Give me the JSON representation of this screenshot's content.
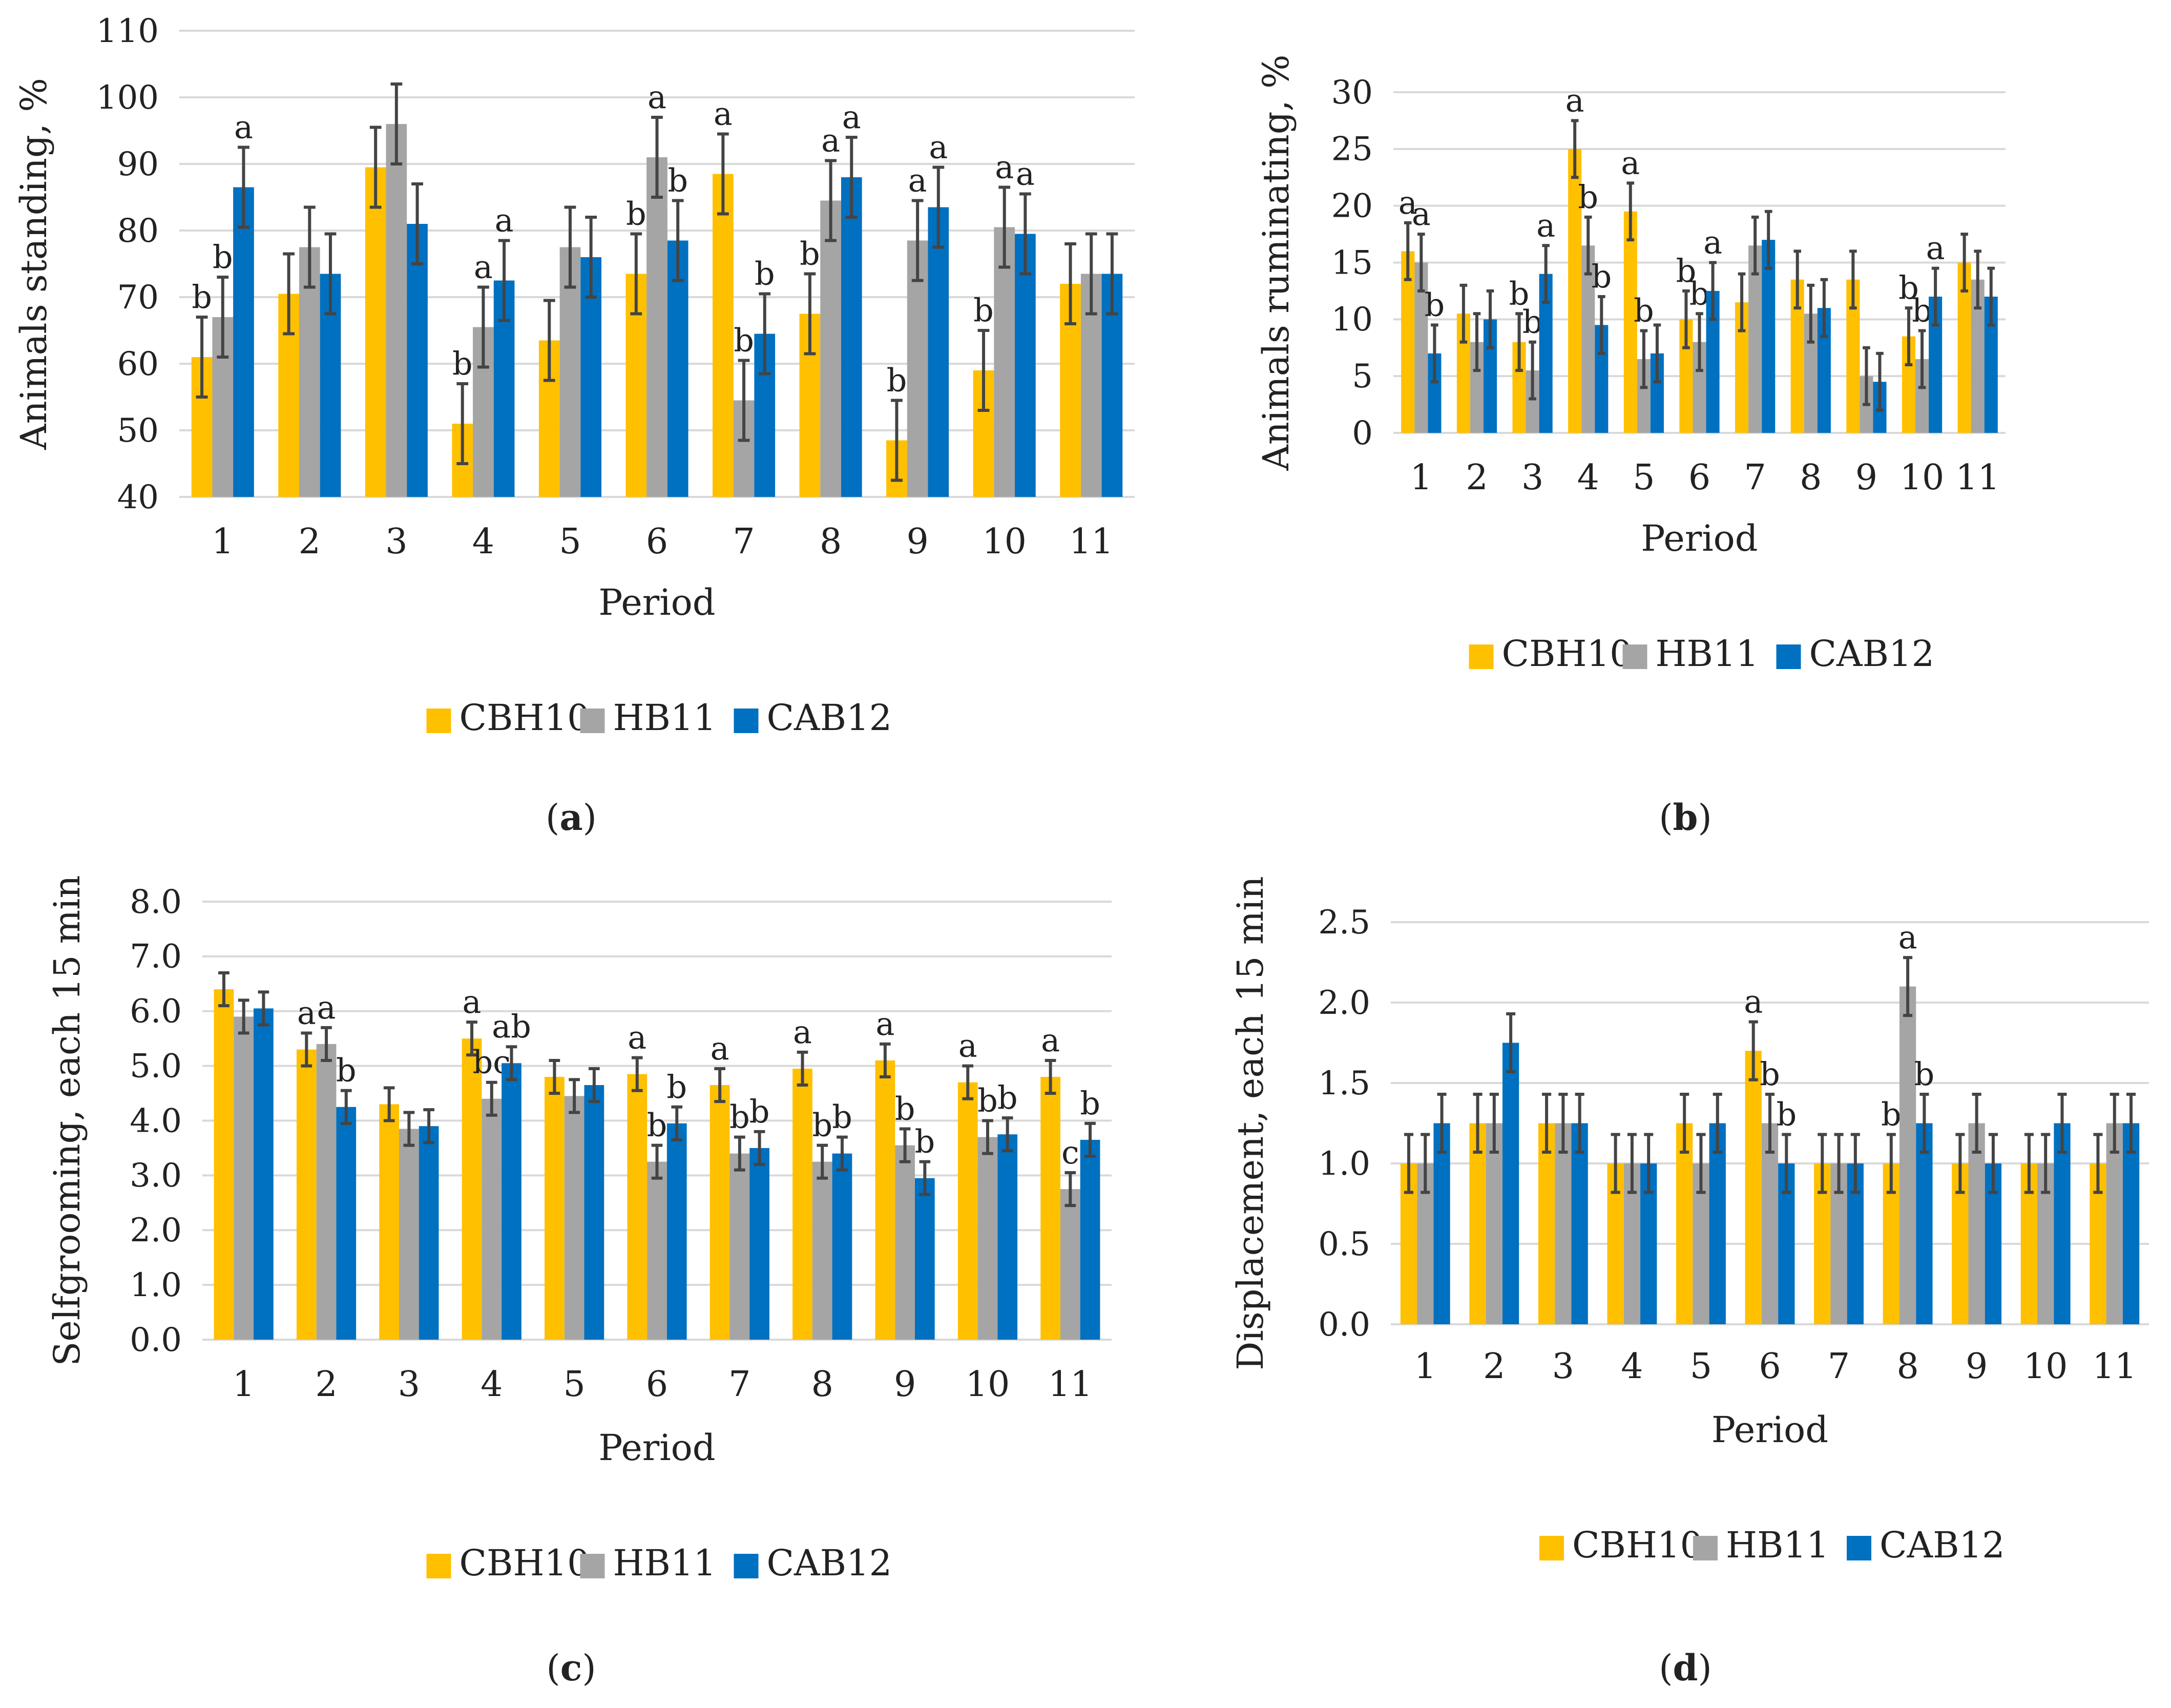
{
  "figure": {
    "colors": {
      "CBH10": "#FFC000",
      "HB11": "#A5A5A5",
      "CAB12": "#0070C0",
      "grid": "#D9D9D9",
      "error": "#444444"
    },
    "panels": [
      {
        "id": "a",
        "caption": "a",
        "legend": [
          "CBH10",
          "HB11",
          "CAB12"
        ]
      },
      {
        "id": "b",
        "caption": "b",
        "legend": [
          "CBH10",
          "HB11",
          "CAB12"
        ]
      },
      {
        "id": "c",
        "caption": "c",
        "legend": [
          "CBH10",
          "HB11",
          "CAB12"
        ]
      },
      {
        "id": "d",
        "caption": "d",
        "legend": [
          "CBH10",
          "HB11",
          "CAB12"
        ]
      }
    ]
  },
  "chart_data": [
    {
      "id": "a",
      "type": "bar",
      "title": "",
      "xlabel": "Period",
      "ylabel": "Animals standing, %",
      "ylim": [
        40,
        110
      ],
      "yticks": [
        "40",
        "50",
        "60",
        "70",
        "80",
        "90",
        "100",
        "110"
      ],
      "grid": true,
      "legend_position": "bottom",
      "categories": [
        "1",
        "2",
        "3",
        "4",
        "5",
        "6",
        "7",
        "8",
        "9",
        "10",
        "11"
      ],
      "series": [
        {
          "name": "CBH10",
          "values": [
            61,
            70.5,
            89.5,
            51,
            63.5,
            73.5,
            88.5,
            67.5,
            48.5,
            59,
            72
          ],
          "errors": [
            6,
            6,
            6,
            6,
            6,
            6,
            6,
            6,
            6,
            6,
            6
          ],
          "letters": [
            "b",
            "",
            "",
            "b",
            "",
            "b",
            "a",
            "b",
            "b",
            "b",
            ""
          ]
        },
        {
          "name": "HB11",
          "values": [
            67,
            77.5,
            96,
            65.5,
            77.5,
            91,
            54.5,
            84.5,
            78.5,
            80.5,
            73.5
          ],
          "errors": [
            6,
            6,
            6,
            6,
            6,
            6,
            6,
            6,
            6,
            6,
            6
          ],
          "letters": [
            "b",
            "",
            "",
            "a",
            "",
            "a",
            "b",
            "a",
            "a",
            "a",
            ""
          ]
        },
        {
          "name": "CAB12",
          "values": [
            86.5,
            73.5,
            81,
            72.5,
            76,
            78.5,
            64.5,
            88,
            83.5,
            79.5,
            73.5
          ],
          "errors": [
            6,
            6,
            6,
            6,
            6,
            6,
            6,
            6,
            6,
            6,
            6
          ],
          "letters": [
            "a",
            "",
            "",
            "a",
            "",
            "b",
            "b",
            "a",
            "a",
            "a",
            ""
          ]
        }
      ]
    },
    {
      "id": "b",
      "type": "bar",
      "title": "",
      "xlabel": "Period",
      "ylabel": "Animals ruminating, %",
      "ylim": [
        0,
        30
      ],
      "yticks": [
        "0",
        "5",
        "10",
        "15",
        "20",
        "25",
        "30"
      ],
      "grid": true,
      "legend_position": "bottom",
      "categories": [
        "1",
        "2",
        "3",
        "4",
        "5",
        "6",
        "7",
        "8",
        "9",
        "10",
        "11"
      ],
      "series": [
        {
          "name": "CBH10",
          "values": [
            16,
            10.5,
            8,
            25,
            19.5,
            10,
            11.5,
            13.5,
            13.5,
            8.5,
            15
          ],
          "errors": [
            2.5,
            2.5,
            2.5,
            2.5,
            2.5,
            2.5,
            2.5,
            2.5,
            2.5,
            2.5,
            2.5
          ],
          "letters": [
            "a",
            "",
            "b",
            "a",
            "a",
            "b",
            "",
            "",
            "",
            "b",
            ""
          ]
        },
        {
          "name": "HB11",
          "values": [
            15,
            8,
            5.5,
            16.5,
            6.5,
            8,
            16.5,
            10.5,
            5,
            6.5,
            13.5
          ],
          "errors": [
            2.5,
            2.5,
            2.5,
            2.5,
            2.5,
            2.5,
            2.5,
            2.5,
            2.5,
            2.5,
            2.5
          ],
          "letters": [
            "a",
            "",
            "b",
            "b",
            "b",
            "b",
            "",
            "",
            "",
            "b",
            ""
          ]
        },
        {
          "name": "CAB12",
          "values": [
            7,
            10,
            14,
            9.5,
            7,
            12.5,
            17,
            11,
            4.5,
            12,
            12
          ],
          "errors": [
            2.5,
            2.5,
            2.5,
            2.5,
            2.5,
            2.5,
            2.5,
            2.5,
            2.5,
            2.5,
            2.5
          ],
          "letters": [
            "b",
            "",
            "a",
            "b",
            "",
            "a",
            "",
            "",
            "",
            "a",
            ""
          ]
        }
      ]
    },
    {
      "id": "c",
      "type": "bar",
      "title": "",
      "xlabel": "Period",
      "ylabel": "Selfgrooming, each 15 min",
      "ylim": [
        0,
        8
      ],
      "yticks": [
        "0.0",
        "1.0",
        "2.0",
        "3.0",
        "4.0",
        "5.0",
        "6.0",
        "7.0",
        "8.0"
      ],
      "grid": true,
      "legend_position": "bottom",
      "categories": [
        "1",
        "2",
        "3",
        "4",
        "5",
        "6",
        "7",
        "8",
        "9",
        "10",
        "11"
      ],
      "series": [
        {
          "name": "CBH10",
          "values": [
            6.4,
            5.3,
            4.3,
            5.5,
            4.8,
            4.85,
            4.65,
            4.95,
            5.1,
            4.7,
            4.8
          ],
          "errors": [
            0.3,
            0.3,
            0.3,
            0.3,
            0.3,
            0.3,
            0.3,
            0.3,
            0.3,
            0.3,
            0.3
          ],
          "letters": [
            "",
            "a",
            "",
            "a",
            "",
            "a",
            "a",
            "a",
            "a",
            "a",
            "a"
          ]
        },
        {
          "name": "HB11",
          "values": [
            5.9,
            5.4,
            3.85,
            4.4,
            4.45,
            3.25,
            3.4,
            3.25,
            3.55,
            3.7,
            2.75
          ],
          "errors": [
            0.3,
            0.3,
            0.3,
            0.3,
            0.3,
            0.3,
            0.3,
            0.3,
            0.3,
            0.3,
            0.3
          ],
          "letters": [
            "",
            "a",
            "",
            "bc",
            "",
            "b",
            "b",
            "b",
            "b",
            "b",
            "c"
          ]
        },
        {
          "name": "CAB12",
          "values": [
            6.05,
            4.25,
            3.9,
            5.05,
            4.65,
            3.95,
            3.5,
            3.4,
            2.95,
            3.75,
            3.65
          ],
          "errors": [
            0.3,
            0.3,
            0.3,
            0.3,
            0.3,
            0.3,
            0.3,
            0.3,
            0.3,
            0.3,
            0.3
          ],
          "letters": [
            "",
            "b",
            "",
            "ab",
            "",
            "b",
            "b",
            "b",
            "b",
            "b",
            "b"
          ]
        }
      ]
    },
    {
      "id": "d",
      "type": "bar",
      "title": "",
      "xlabel": "Period",
      "ylabel": "Displacement, each 15 min",
      "ylim": [
        0,
        2.5
      ],
      "yticks": [
        "0.0",
        "0.5",
        "1.0",
        "1.5",
        "2.0",
        "2.5"
      ],
      "grid": true,
      "legend_position": "bottom",
      "categories": [
        "1",
        "2",
        "3",
        "4",
        "5",
        "6",
        "7",
        "8",
        "9",
        "10",
        "11"
      ],
      "series": [
        {
          "name": "CBH10",
          "values": [
            1,
            1.25,
            1.25,
            1,
            1.25,
            1.7,
            1,
            1,
            1,
            1,
            1
          ],
          "errors": [
            0.18,
            0.18,
            0.18,
            0.18,
            0.18,
            0.18,
            0.18,
            0.18,
            0.18,
            0.18,
            0.18
          ],
          "letters": [
            "",
            "",
            "",
            "",
            "",
            "a",
            "",
            "b",
            "",
            "",
            ""
          ]
        },
        {
          "name": "HB11",
          "values": [
            1,
            1.25,
            1.25,
            1,
            1,
            1.25,
            1,
            2.1,
            1.25,
            1,
            1.25
          ],
          "errors": [
            0.18,
            0.18,
            0.18,
            0.18,
            0.18,
            0.18,
            0.18,
            0.18,
            0.18,
            0.18,
            0.18
          ],
          "letters": [
            "",
            "",
            "",
            "",
            "",
            "b",
            "",
            "a",
            "",
            "",
            ""
          ]
        },
        {
          "name": "CAB12",
          "values": [
            1.25,
            1.75,
            1.25,
            1,
            1.25,
            1,
            1,
            1.25,
            1,
            1.25,
            1.25
          ],
          "errors": [
            0.18,
            0.18,
            0.18,
            0.18,
            0.18,
            0.18,
            0.18,
            0.18,
            0.18,
            0.18,
            0.18
          ],
          "letters": [
            "",
            "",
            "",
            "",
            "",
            "b",
            "",
            "b",
            "",
            "",
            ""
          ]
        }
      ]
    }
  ]
}
